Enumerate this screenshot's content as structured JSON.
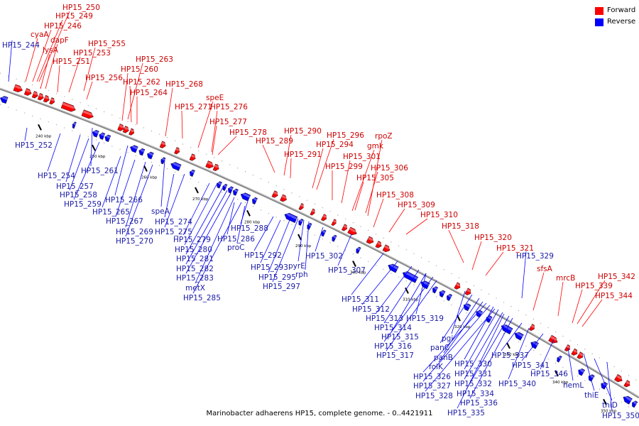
{
  "title": "Marinobacter adhaerens HP15, complete genome. - 0..4421911",
  "legend": [
    {
      "label": "Forward",
      "color": "#ff0000"
    },
    {
      "label": "Reverse",
      "color": "#0000ff"
    }
  ],
  "colors": {
    "forward": "#ff0000",
    "reverse": "#0000ff",
    "forward_label": "#cc0000",
    "reverse_label": "#1a1aa6",
    "backbone": "#888888"
  },
  "scale": {
    "unit": "kbp",
    "ticks": [
      "240 kbp",
      "250 kbp",
      "260 kbp",
      "270 kbp",
      "280 kbp",
      "290 kbp",
      "300 kbp",
      "310 kbp",
      "320 kbp",
      "330 kbp",
      "340 kbp",
      "350 kbp"
    ]
  },
  "forward_labels": [
    "HP15_250",
    "HP15_249",
    "HP15_246",
    "cyaA",
    "dapF",
    "lysA",
    "HP15_255",
    "HP15_253",
    "HP15_251",
    "HP15_256",
    "HP15_263",
    "HP15_260",
    "HP15_262",
    "HP15_264",
    "HP15_268",
    "speE",
    "HP15_271",
    "HP15_276",
    "HP15_277",
    "HP15_278",
    "HP15_290",
    "HP15_289",
    "HP15_291",
    "HP15_296",
    "rpoZ",
    "HP15_294",
    "gmk",
    "HP15_301",
    "HP15_299",
    "HP15_306",
    "HP15_305",
    "HP15_308",
    "HP15_309",
    "HP15_310",
    "HP15_318",
    "HP15_320",
    "HP15_321",
    "sfsA",
    "mrcB",
    "HP15_342",
    "HP15_339",
    "HP15_344"
  ],
  "reverse_labels": [
    "HP15_244",
    "HP15_252",
    "HP15_254",
    "HP15_261",
    "HP15_257",
    "HP15_258",
    "HP15_259",
    "HP15_266",
    "HP15_265",
    "speA",
    "HP15_267",
    "HP15_274",
    "HP15_269",
    "HP15_275",
    "HP15_270",
    "HP15_288",
    "HP15_279",
    "HP15_286",
    "HP15_280",
    "proC",
    "HP15_281",
    "HP15_282",
    "HP15_283",
    "metX",
    "HP15_285",
    "HP15_292",
    "HP15_293",
    "pyrE",
    "rph",
    "HP15_295",
    "HP15_297",
    "HP15_302",
    "HP15_307",
    "HP15_329",
    "HP15_311",
    "HP15_312",
    "HP15_313",
    "HP15_319",
    "HP15_314",
    "HP15_315",
    "HP15_316",
    "HP15_317",
    "pgi",
    "panC",
    "panB",
    "folK",
    "HP15_330",
    "HP15_326",
    "HP15_331",
    "HP15_327",
    "HP15_332",
    "HP15_328",
    "HP15_334",
    "HP15_336",
    "HP15_335",
    "HP15_337",
    "HP15_341",
    "HP15_340",
    "HP15_346",
    "hemL",
    "thiE",
    "thiD",
    "HP15_350"
  ]
}
